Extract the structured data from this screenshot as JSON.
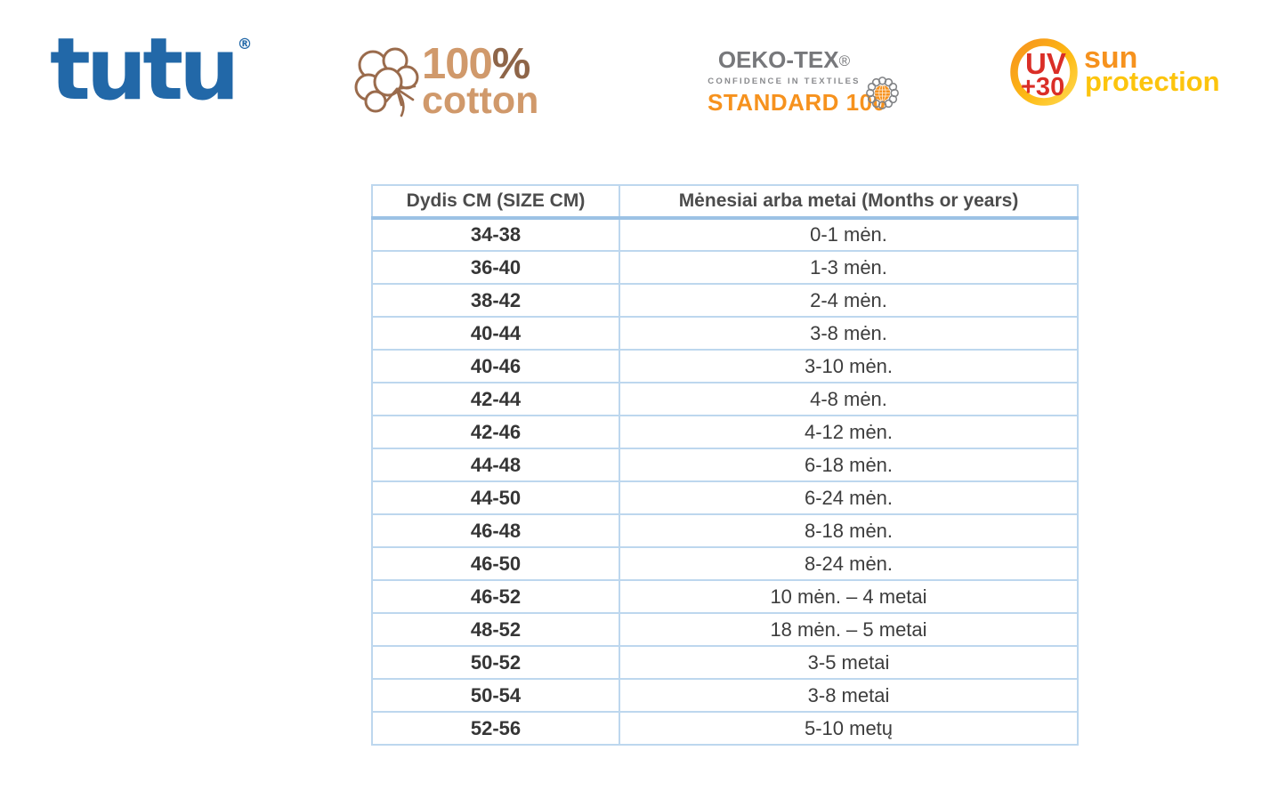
{
  "logos": {
    "tutu": {
      "text": "tutu",
      "registered": "®",
      "color": "#2268A8"
    },
    "cotton": {
      "line1_number": "100",
      "line1_percent": "%",
      "line2": "cotton",
      "color_light": "#D0996B",
      "color_dark": "#8E6548"
    },
    "oekotex": {
      "line1": "OEKO-TEX",
      "registered": "®",
      "line2": "CONFIDENCE IN TEXTILES",
      "line3": "STANDARD 100",
      "gray": "#77787B",
      "orange": "#F6921E"
    },
    "uv": {
      "badge_line1": "UV",
      "badge_line2": "+30",
      "word1": "sun",
      "word2": "protection",
      "red": "#DA2E27",
      "orange": "#F6921E",
      "yellow": "#FCC40D"
    }
  },
  "size_table": {
    "headers": [
      "Dydis CM (SIZE CM)",
      "Mėnesiai arba metai (Months or years)"
    ],
    "rows": [
      [
        "34-38",
        "0-1 mėn."
      ],
      [
        "36-40",
        "1-3 mėn."
      ],
      [
        "38-42",
        "2-4 mėn."
      ],
      [
        "40-44",
        "3-8 mėn."
      ],
      [
        "40-46",
        "3-10 mėn."
      ],
      [
        "42-44",
        "4-8 mėn."
      ],
      [
        "42-46",
        "4-12 mėn."
      ],
      [
        "44-48",
        "6-18 mėn."
      ],
      [
        "44-50",
        "6-24 mėn."
      ],
      [
        "46-48",
        "8-18 mėn."
      ],
      [
        "46-50",
        "8-24 mėn."
      ],
      [
        "46-52",
        "10 mėn. – 4 metai"
      ],
      [
        "48-52",
        "18 mėn. – 5 metai"
      ],
      [
        "50-52",
        "3-5 metai"
      ],
      [
        "50-54",
        "3-8 metai"
      ],
      [
        "52-56",
        "5-10 metų"
      ]
    ],
    "border_light": "#BDD7EE",
    "border_accent": "#9CC2E5",
    "text_color": "#3D3D3D"
  }
}
